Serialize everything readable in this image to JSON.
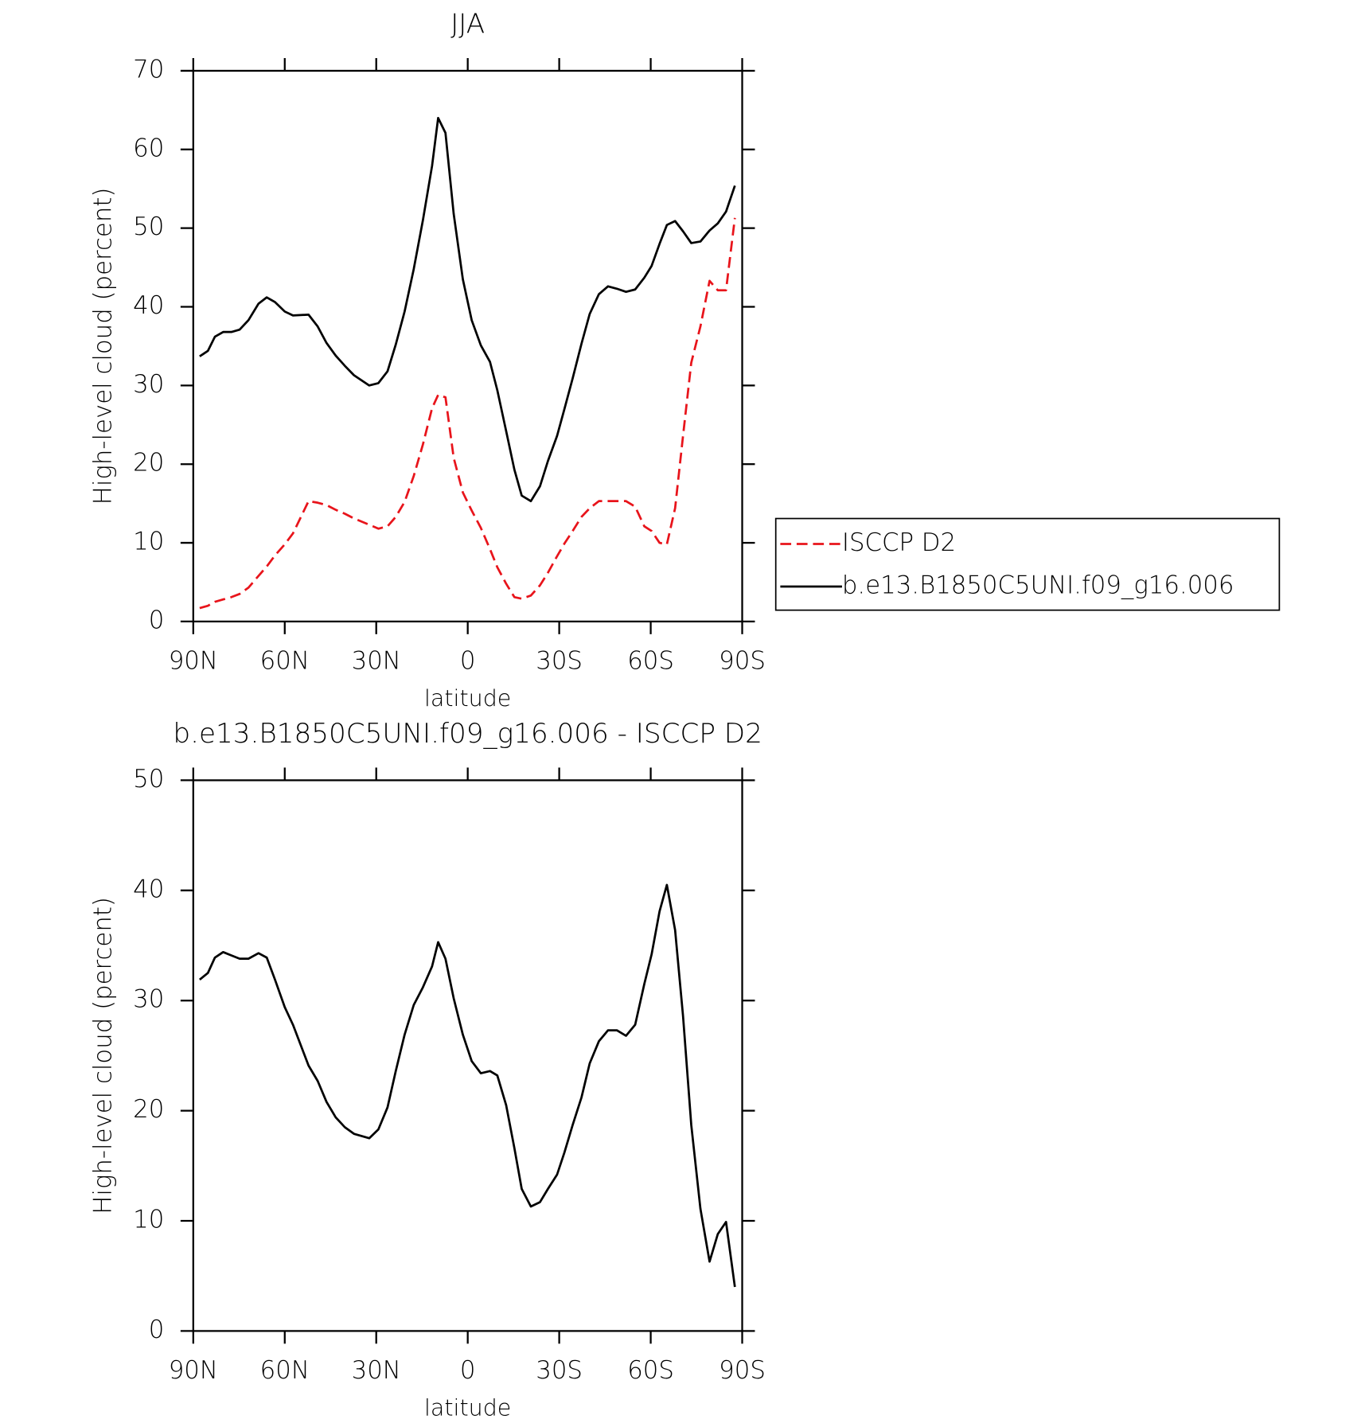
{
  "chart_data": [
    {
      "type": "line",
      "title": "JJA",
      "xlabel": "latitude",
      "ylabel": "High-level cloud (percent)",
      "x": [
        87.9,
        85.2,
        82.9,
        80.2,
        77.5,
        74.8,
        71.9,
        68.6,
        65.9,
        63.2,
        60,
        57.3,
        52.2,
        49.2,
        46.3,
        43.3,
        40.3,
        37.3,
        32.3,
        29.3,
        26.3,
        23.6,
        20.7,
        17.7,
        14.7,
        11.7,
        9.7,
        7.3,
        4.6,
        1.6,
        -1.3,
        -4.3,
        -7.3,
        -9.7,
        -12.6,
        -15.3,
        -17.7,
        -20.7,
        -23.7,
        -26.3,
        -29.3,
        -31.7,
        -34.4,
        -37.3,
        -40,
        -43,
        -46,
        -48.9,
        -51.9,
        -54.9,
        -57.9,
        -60.3,
        -62.9,
        -65.3,
        -68,
        -70.6,
        -73.3,
        -76.3,
        -79.3,
        -82,
        -84.7,
        -87.6
      ],
      "series": [
        {
          "name": "ISCCP D2",
          "color": "#e8141b",
          "line_style": "dashed",
          "values": [
            1.7,
            2.0,
            2.5,
            2.8,
            3.1,
            3.5,
            4.3,
            5.8,
            7.0,
            8.4,
            9.8,
            11.2,
            15.3,
            15.1,
            14.8,
            14.2,
            13.7,
            13.1,
            12.3,
            11.8,
            12.1,
            13.3,
            15.2,
            18.5,
            22.5,
            27.1,
            28.8,
            28.5,
            20.8,
            16.4,
            14.1,
            11.9,
            9.2,
            6.9,
            4.8,
            3.1,
            2.9,
            3.3,
            4.6,
            6.2,
            8.3,
            9.9,
            11.5,
            13.3,
            14.4,
            15.3,
            15.3,
            15.3,
            15.3,
            14.6,
            12.1,
            11.5,
            10.0,
            9.8,
            14.4,
            23.6,
            32.9,
            37.5,
            43.3,
            42.1,
            42.1,
            51.3
          ]
        },
        {
          "name": "b.e13.B1850C5UNI.f09_g16.006",
          "color": "#000000",
          "line_style": "solid",
          "values": [
            33.7,
            34.4,
            36.2,
            36.8,
            36.8,
            37.1,
            38.3,
            40.4,
            41.2,
            40.6,
            39.4,
            38.9,
            39.0,
            37.5,
            35.4,
            33.8,
            32.5,
            31.3,
            30.0,
            30.3,
            31.8,
            35.2,
            39.4,
            44.8,
            51.0,
            57.9,
            64.0,
            62.1,
            51.8,
            43.5,
            38.3,
            35.1,
            33.0,
            29.4,
            24.2,
            19.3,
            16.0,
            15.3,
            17.2,
            20.4,
            23.6,
            27.0,
            30.9,
            35.3,
            39.1,
            41.6,
            42.6,
            42.3,
            41.9,
            42.2,
            43.7,
            45.2,
            48.0,
            50.4,
            50.9,
            49.6,
            48.1,
            48.3,
            49.7,
            50.6,
            52.1,
            55.4
          ]
        }
      ],
      "xlim": [
        90,
        -90
      ],
      "xticks": [
        {
          "value": 90,
          "label": "90N"
        },
        {
          "value": 60,
          "label": "60N"
        },
        {
          "value": 30,
          "label": "30N"
        },
        0,
        {
          "value": -30,
          "label": "30S"
        },
        {
          "value": -60,
          "label": "60S"
        },
        {
          "value": -90,
          "label": "90S"
        }
      ],
      "ylim": [
        0,
        70
      ],
      "yticks": [
        0,
        10,
        20,
        30,
        40,
        50,
        60,
        70
      ],
      "legend": "right"
    },
    {
      "type": "line",
      "title": "b.e13.B1850C5UNI.f09_g16.006 - ISCCP D2",
      "xlabel": "latitude",
      "ylabel": "High-level cloud (percent)",
      "x": [
        87.9,
        85.2,
        82.9,
        80.2,
        77.5,
        74.8,
        71.9,
        68.6,
        65.9,
        63.2,
        60,
        57.3,
        52.2,
        49.2,
        46.3,
        43.3,
        40.3,
        37.3,
        32.3,
        29.3,
        26.3,
        23.6,
        20.7,
        17.7,
        14.7,
        11.7,
        9.7,
        7.3,
        4.6,
        1.6,
        -1.3,
        -4.3,
        -7.3,
        -9.7,
        -12.6,
        -15.3,
        -17.7,
        -20.7,
        -23.7,
        -26.3,
        -29.3,
        -31.7,
        -34.4,
        -37.3,
        -40,
        -43,
        -46,
        -48.9,
        -51.9,
        -54.9,
        -57.9,
        -60.3,
        -62.9,
        -65.3,
        -68,
        -70.6,
        -73.3,
        -76.3,
        -79.3,
        -82,
        -84.7,
        -87.6
      ],
      "series": [
        {
          "color": "#000000",
          "line_style": "solid",
          "values": [
            31.9,
            32.5,
            33.9,
            34.4,
            34.1,
            33.8,
            33.8,
            34.3,
            33.9,
            31.9,
            29.4,
            27.8,
            24.1,
            22.7,
            20.8,
            19.4,
            18.5,
            17.9,
            17.5,
            18.3,
            20.3,
            23.6,
            26.9,
            29.6,
            31.2,
            33.1,
            35.3,
            33.8,
            30.2,
            26.9,
            24.5,
            23.4,
            23.6,
            23.2,
            20.5,
            16.6,
            12.9,
            11.3,
            11.7,
            12.9,
            14.2,
            16.2,
            18.7,
            21.2,
            24.3,
            26.3,
            27.3,
            27.3,
            26.8,
            27.8,
            31.5,
            34.2,
            38.1,
            40.5,
            36.4,
            28.6,
            18.7,
            11.1,
            6.3,
            8.8,
            9.9,
            4.0
          ]
        }
      ],
      "xlim": [
        90,
        -90
      ],
      "xticks": [
        {
          "value": 90,
          "label": "90N"
        },
        {
          "value": 60,
          "label": "60N"
        },
        {
          "value": 30,
          "label": "30N"
        },
        0,
        {
          "value": -30,
          "label": "30S"
        },
        {
          "value": -60,
          "label": "60S"
        },
        {
          "value": -90,
          "label": "90S"
        }
      ],
      "ylim": [
        0,
        50
      ],
      "yticks": [
        0,
        10,
        20,
        30,
        40,
        50
      ]
    }
  ]
}
